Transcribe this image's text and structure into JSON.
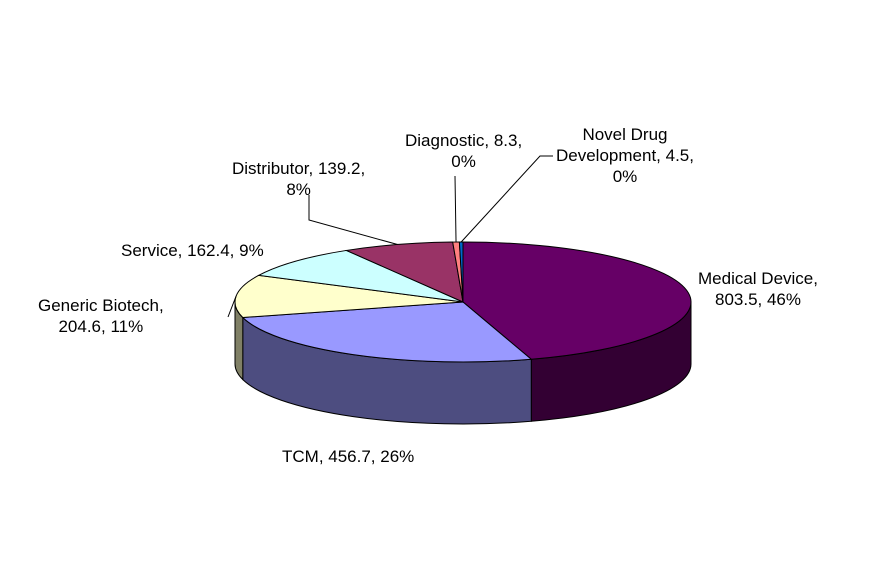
{
  "chart_data": {
    "type": "pie",
    "style": "3d",
    "title": "",
    "slices": [
      {
        "name": "Medical Device",
        "value": 803.5,
        "percent": "46%",
        "color": "#660066",
        "label_lines": [
          "Medical Device,",
          "803.5, 46%"
        ]
      },
      {
        "name": "TCM",
        "value": 456.7,
        "percent": "26%",
        "color": "#9999ff",
        "label_lines": [
          "TCM, 456.7, 26%"
        ]
      },
      {
        "name": "Generic Biotech",
        "value": 204.6,
        "percent": "11%",
        "color": "#ffffcc",
        "label_lines": [
          "Generic Biotech,",
          "204.6, 11%"
        ]
      },
      {
        "name": "Service",
        "value": 162.4,
        "percent": "9%",
        "color": "#ccffff",
        "label_lines": [
          "Service, 162.4, 9%"
        ]
      },
      {
        "name": "Distributor",
        "value": 139.2,
        "percent": "8%",
        "color": "#993366",
        "label_lines": [
          "Distributor, 139.2,",
          "8%"
        ]
      },
      {
        "name": "Diagnostic",
        "value": 8.3,
        "percent": "0%",
        "color": "#ff8080",
        "label_lines": [
          "Diagnostic, 8.3,",
          "0%"
        ]
      },
      {
        "name": "Novel Drug Development",
        "value": 4.5,
        "percent": "0%",
        "color": "#0066cc",
        "label_lines": [
          "Novel Drug",
          "Development, 4.5,",
          "0%"
        ]
      }
    ],
    "legend": "none",
    "data_labels": "category, value, percent"
  }
}
